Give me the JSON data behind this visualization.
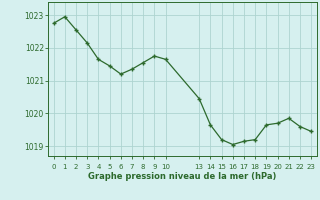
{
  "x_values": [
    0,
    1,
    2,
    3,
    4,
    5,
    6,
    7,
    8,
    9,
    10,
    13,
    14,
    15,
    16,
    17,
    18,
    19,
    20,
    21,
    22,
    23
  ],
  "y_values": [
    1022.75,
    1022.95,
    1022.55,
    1022.15,
    1021.65,
    1021.45,
    1021.2,
    1021.35,
    1021.55,
    1021.75,
    1021.65,
    1020.45,
    1019.65,
    1019.2,
    1019.05,
    1019.15,
    1019.2,
    1019.65,
    1019.7,
    1019.85,
    1019.6,
    1019.45
  ],
  "line_color": "#2d6a2d",
  "marker_color": "#2d6a2d",
  "bg_color": "#d6f0ef",
  "grid_color": "#aed4d0",
  "xlabel": "Graphe pression niveau de la mer (hPa)",
  "xlabel_color": "#2d6a2d",
  "tick_color": "#2d6a2d",
  "ylim": [
    1018.7,
    1023.4
  ],
  "yticks": [
    1019,
    1020,
    1021,
    1022,
    1023
  ],
  "spine_color": "#2d6a2d",
  "marker_size": 2.0
}
